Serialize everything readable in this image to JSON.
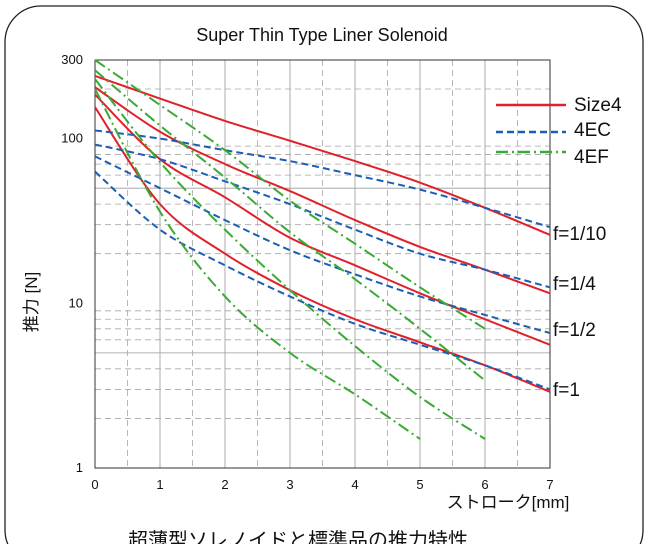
{
  "chart_data": {
    "type": "line",
    "title": "Super Thin Type Liner Solenoid",
    "xlabel": "ストローク[mm]",
    "ylabel": "推力 [N]",
    "caption": "超薄型ソレノイドと標準品の推力特性",
    "xlim": [
      0,
      7
    ],
    "ylim": [
      1,
      300
    ],
    "y_scale": "log",
    "grid": true,
    "x_ticks": [
      "0",
      "1",
      "2",
      "3",
      "4",
      "5",
      "6",
      "7"
    ],
    "y_ticks": [
      {
        "value": 1,
        "label": "1"
      },
      {
        "value": 10,
        "label": "10"
      },
      {
        "value": 100,
        "label": "100"
      },
      {
        "value": 300,
        "label": "300"
      }
    ],
    "legend": {
      "position": "right",
      "entries": [
        {
          "name": "Size4",
          "color": "#e0202a",
          "style": "solid"
        },
        {
          "name": "4EC",
          "color": "#1a5fb4",
          "style": "dashed"
        },
        {
          "name": "4EF",
          "color": "#3aaa35",
          "style": "dashdot"
        }
      ]
    },
    "duty_labels": [
      {
        "label": "f=1/10",
        "value": 26
      },
      {
        "label": "f=1/4",
        "value": 11
      },
      {
        "label": "f=1/2",
        "value": 5.6
      },
      {
        "label": "f=1"
      }
    ],
    "series": [
      {
        "name": "Size4",
        "group": "f=1/10",
        "color": "#e0202a",
        "style": "solid",
        "x": [
          0,
          1,
          2,
          3,
          4,
          5,
          6,
          7
        ],
        "y": [
          240,
          175,
          128,
          97,
          73,
          54,
          38,
          26
        ]
      },
      {
        "name": "Size4",
        "group": "f=1/4",
        "color": "#e0202a",
        "style": "solid",
        "x": [
          0,
          1,
          2,
          3,
          4,
          5,
          6,
          7
        ],
        "y": [
          205,
          110,
          70,
          48,
          32,
          22,
          16,
          11.5
        ]
      },
      {
        "name": "Size4",
        "group": "f=1/2",
        "color": "#e0202a",
        "style": "solid",
        "x": [
          0,
          1,
          2,
          3,
          4,
          5,
          6,
          7
        ],
        "y": [
          185,
          75,
          44,
          25,
          17,
          11.5,
          8,
          5.6
        ]
      },
      {
        "name": "Size4",
        "group": "f=1",
        "color": "#e0202a",
        "style": "solid",
        "x": [
          0,
          1,
          2,
          3,
          4,
          5,
          6,
          7
        ],
        "y": [
          155,
          40,
          20,
          12,
          8,
          5.8,
          4.2,
          2.9
        ]
      },
      {
        "name": "4EC",
        "group": "f=1/10",
        "color": "#1a5fb4",
        "style": "dashed",
        "x": [
          0,
          1,
          2,
          3,
          4,
          5,
          6,
          7
        ],
        "y": [
          112,
          100,
          85,
          73,
          60,
          49,
          38,
          29
        ]
      },
      {
        "name": "4EC",
        "group": "f=1/4",
        "color": "#1a5fb4",
        "style": "dashed",
        "x": [
          0,
          1,
          2,
          3,
          4,
          5,
          6,
          7
        ],
        "y": [
          92,
          75,
          55,
          40,
          28,
          20,
          16,
          12.5
        ]
      },
      {
        "name": "4EC",
        "group": "f=1/2",
        "color": "#1a5fb4",
        "style": "dashed",
        "x": [
          0,
          1,
          2,
          3,
          4,
          5,
          6,
          7
        ],
        "y": [
          78,
          50,
          32,
          21,
          15,
          11,
          8.5,
          6.6
        ]
      },
      {
        "name": "4EC",
        "group": "f=1",
        "color": "#1a5fb4",
        "style": "dashed",
        "x": [
          0,
          1,
          2,
          3,
          4,
          5,
          6,
          7
        ],
        "y": [
          63,
          28,
          17,
          11,
          7.5,
          5.6,
          4.2,
          3
        ]
      },
      {
        "name": "4EF",
        "group": "f=1/10",
        "color": "#3aaa35",
        "style": "dashdot",
        "x": [
          0,
          1,
          2,
          3,
          4,
          5,
          6
        ],
        "y": [
          300,
          160,
          85,
          42,
          23,
          12.5,
          7
        ]
      },
      {
        "name": "4EF",
        "group": "f=1/4",
        "color": "#3aaa35",
        "style": "dashdot",
        "x": [
          0,
          1,
          2,
          3,
          4,
          5,
          6
        ],
        "y": [
          260,
          120,
          58,
          27,
          14,
          7,
          3.4
        ]
      },
      {
        "name": "4EF",
        "group": "f=1/2",
        "color": "#3aaa35",
        "style": "dashdot",
        "x": [
          0,
          1,
          2,
          3,
          4,
          5,
          6
        ],
        "y": [
          230,
          72,
          28,
          12,
          5.5,
          2.7,
          1.5
        ]
      },
      {
        "name": "4EF",
        "group": "f=1",
        "color": "#3aaa35",
        "style": "dashdot",
        "x": [
          0,
          1,
          2,
          3,
          4,
          5
        ],
        "y": [
          200,
          36,
          11,
          5,
          2.8,
          1.5
        ]
      }
    ]
  }
}
